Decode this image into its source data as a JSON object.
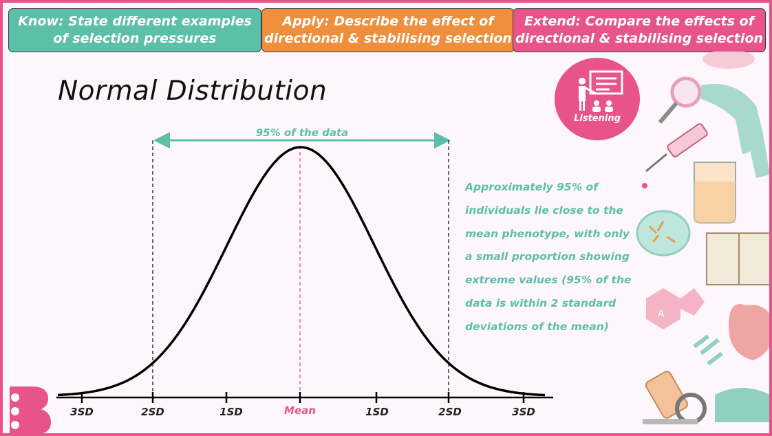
{
  "objectives": {
    "know": {
      "line1": "Know: State different examples",
      "line2": "of selection pressures"
    },
    "apply": {
      "line1": "Apply: Describe the effect of",
      "line2": "directional & stabilising selection"
    },
    "extend": {
      "line1": "Extend: Compare the effects of",
      "line2": "directional & stabilising selection"
    }
  },
  "title": "Normal Distribution",
  "range_label": "95% of the data",
  "explanation": {
    "lines": [
      "Approximately 95% of",
      "individuals lie close to the",
      "mean phenotype, with only",
      "a small proportion showing",
      "extreme values (95% of the",
      "data is within 2 standard",
      "deviations of the mean)"
    ]
  },
  "axis_ticks": [
    "3SD",
    "2SD",
    "1SD",
    "Mean",
    "1SD",
    "2SD",
    "3SD"
  ],
  "mode_icon": {
    "label": "Listening",
    "icon": "teacher-presentation-icon"
  },
  "colors": {
    "teal": "#5cbfa8",
    "orange": "#ef8e3b",
    "pink": "#e8538a"
  }
}
